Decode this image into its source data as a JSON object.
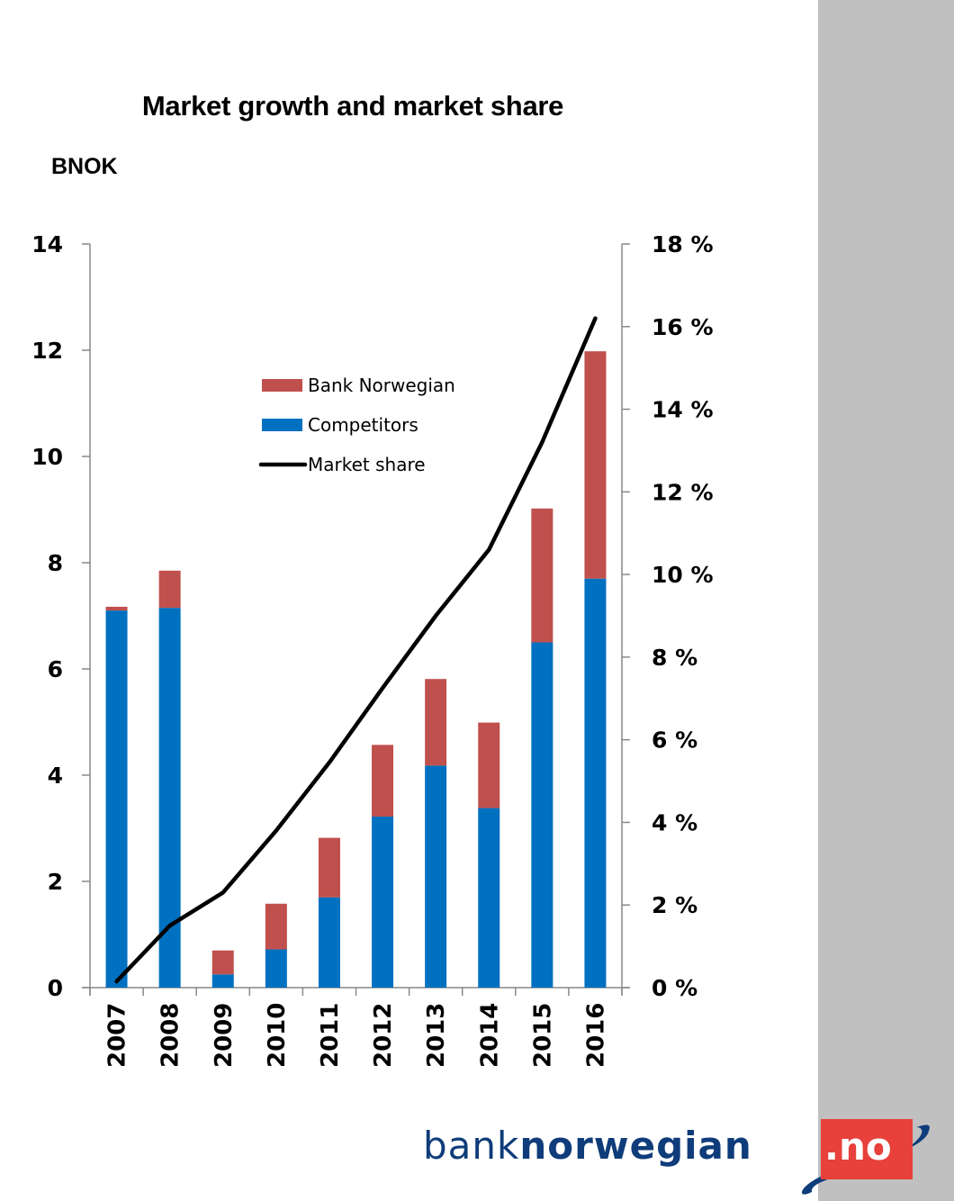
{
  "page": {
    "background": "#ffffff",
    "side_panel_color": "#c0c0c0"
  },
  "logo": {
    "text_light": "bank",
    "text_bold": "norwegian",
    "tld": ".no",
    "text_color": "#0f3c7a",
    "box_color": "#e8403a"
  },
  "chart_data": {
    "type": "bar",
    "stacked": true,
    "title": "Market growth and market share",
    "ylabel": "BNOK",
    "ylabel_right": "",
    "xlabel": "",
    "categories": [
      "2007",
      "2008",
      "2009",
      "2010",
      "2011",
      "2012",
      "2013",
      "2014",
      "2015",
      "2016"
    ],
    "series": [
      {
        "name": "Competitors",
        "type": "bar",
        "axis": "left",
        "color": "#0070c0",
        "values": [
          7.1,
          7.15,
          0.25,
          0.72,
          1.7,
          3.22,
          4.18,
          3.38,
          6.5,
          7.7
        ]
      },
      {
        "name": "Bank Norwegian",
        "type": "bar",
        "axis": "left",
        "color": "#c0504d",
        "values": [
          0.07,
          0.7,
          0.45,
          0.86,
          1.12,
          1.35,
          1.63,
          1.61,
          2.52,
          4.28
        ]
      },
      {
        "name": "Market share",
        "type": "line",
        "axis": "right",
        "color": "#000000",
        "unit": "%",
        "values": [
          0.15,
          1.5,
          2.3,
          3.8,
          5.45,
          7.25,
          9.0,
          10.6,
          13.2,
          16.2
        ]
      }
    ],
    "ylim": [
      0,
      14
    ],
    "yticks": [
      0,
      2,
      4,
      6,
      8,
      10,
      12,
      14
    ],
    "ytick_labels": [
      "0",
      "2",
      "4",
      "6",
      "8",
      "10",
      "12",
      "14"
    ],
    "ylim_right": [
      0,
      18
    ],
    "yticks_right": [
      0,
      2,
      4,
      6,
      8,
      10,
      12,
      14,
      16,
      18
    ],
    "ytick_labels_right": [
      "0 %",
      "2 %",
      "4 %",
      "6 %",
      "8 %",
      "10 %",
      "12 %",
      "14 %",
      "16 %",
      "18 %"
    ],
    "grid": false,
    "legend": {
      "position": "upper-center",
      "entries": [
        "Bank Norwegian",
        "Competitors",
        "Market share"
      ]
    }
  }
}
